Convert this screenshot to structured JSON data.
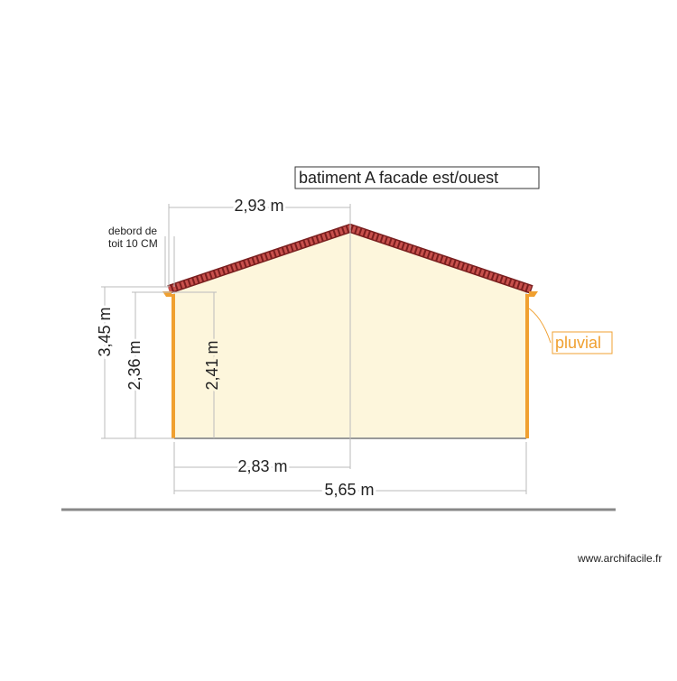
{
  "title": "batiment A  facade est/ouest",
  "annotations": {
    "roof_overhang": [
      "debord de",
      "toit 10 CM"
    ],
    "downpipe": "pluvial"
  },
  "dimensions": {
    "roof_half_width": "2,93 m",
    "total_height": "3,45 m",
    "eave_height": "2,36 m",
    "wall_height": "2,41 m",
    "half_width": "2,83 m",
    "width": "5,65 m"
  },
  "footer": "www.archifacile.fr"
}
